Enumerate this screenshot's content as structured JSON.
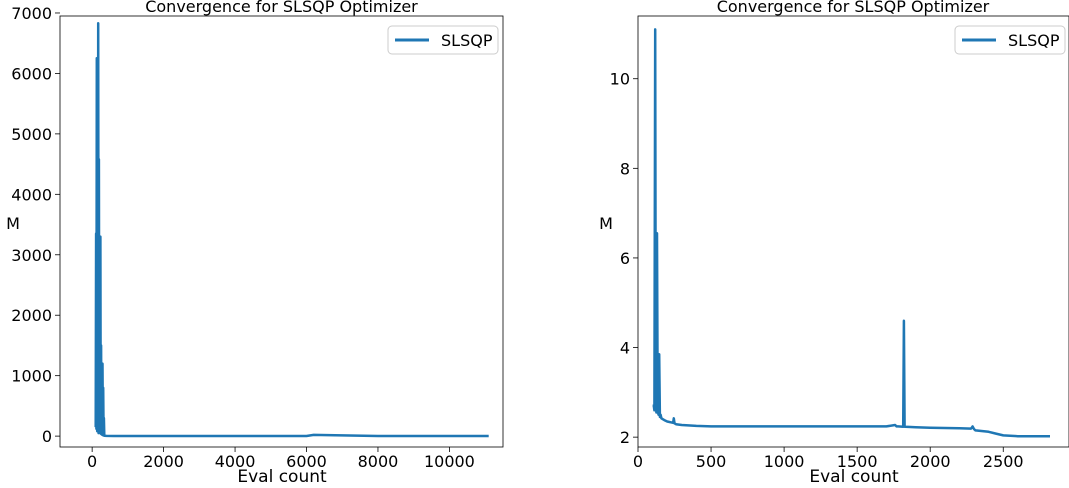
{
  "chart_data": [
    {
      "type": "line",
      "title": "Convergence for SLSQP Optimizer",
      "xlabel": "Eval count",
      "ylabel": "M",
      "xlim": [
        -900,
        11500
      ],
      "ylim": [
        -180,
        6950
      ],
      "xticks": [
        0,
        2000,
        4000,
        6000,
        8000,
        10000
      ],
      "xtick_labels": [
        "0",
        "2000",
        "4000",
        "6000",
        "8000",
        "10000"
      ],
      "yticks": [
        0,
        1000,
        2000,
        3000,
        4000,
        5000,
        6000,
        7000
      ],
      "ytick_labels": [
        "0",
        "1000",
        "2000",
        "3000",
        "4000",
        "5000",
        "6000",
        "7000"
      ],
      "grid": false,
      "legend_position": "top-right",
      "series": [
        {
          "name": "SLSQP",
          "color": "#1f77b4",
          "x": [
            100,
            110,
            120,
            130,
            140,
            150,
            160,
            170,
            180,
            190,
            200,
            210,
            220,
            230,
            240,
            250,
            260,
            270,
            280,
            290,
            300,
            310,
            320,
            330,
            340,
            350,
            400,
            600,
            1000,
            2000,
            4000,
            6000,
            6200,
            8000,
            10000,
            11100
          ],
          "y": [
            150,
            3350,
            120,
            6250,
            80,
            2600,
            150,
            6830,
            50,
            4580,
            100,
            2200,
            60,
            3300,
            40,
            1500,
            30,
            900,
            20,
            1200,
            15,
            800,
            10,
            300,
            5,
            5,
            3,
            2,
            2,
            2,
            2,
            2,
            20,
            2,
            2,
            2
          ]
        }
      ]
    },
    {
      "type": "line",
      "title": "Convergence for SLSQP Optimizer",
      "xlabel": "Eval count",
      "ylabel": "M",
      "xlim": [
        0,
        2950
      ],
      "ylim": [
        1.78,
        11.4
      ],
      "xticks": [
        0,
        500,
        1000,
        1500,
        2000,
        2500
      ],
      "xtick_labels": [
        "0",
        "500",
        "1000",
        "1500",
        "2000",
        "2500"
      ],
      "yticks": [
        2,
        4,
        6,
        8,
        10
      ],
      "ytick_labels": [
        "2",
        "4",
        "6",
        "8",
        "10"
      ],
      "grid": false,
      "legend_position": "top-right",
      "series": [
        {
          "name": "SLSQP",
          "color": "#1f77b4",
          "x": [
            100,
            108,
            112,
            118,
            122,
            126,
            130,
            135,
            140,
            145,
            150,
            155,
            160,
            170,
            180,
            200,
            240,
            245,
            250,
            260,
            300,
            400,
            500,
            700,
            1000,
            1300,
            1500,
            1700,
            1760,
            1770,
            1780,
            1815,
            1820,
            1825,
            1830,
            1900,
            2000,
            2200,
            2280,
            2290,
            2300,
            2310,
            2400,
            2450,
            2500,
            2600,
            2700,
            2820
          ],
          "y": [
            2.7,
            2.7,
            2.6,
            11.1,
            2.7,
            2.55,
            6.55,
            2.6,
            2.5,
            3.85,
            2.45,
            2.5,
            2.42,
            2.4,
            2.38,
            2.35,
            2.32,
            2.42,
            2.31,
            2.29,
            2.27,
            2.25,
            2.24,
            2.24,
            2.24,
            2.24,
            2.24,
            2.24,
            2.27,
            2.24,
            2.24,
            2.23,
            4.6,
            2.23,
            2.23,
            2.22,
            2.21,
            2.2,
            2.19,
            2.24,
            2.18,
            2.15,
            2.12,
            2.08,
            2.04,
            2.02,
            2.02,
            2.02
          ]
        }
      ]
    }
  ]
}
